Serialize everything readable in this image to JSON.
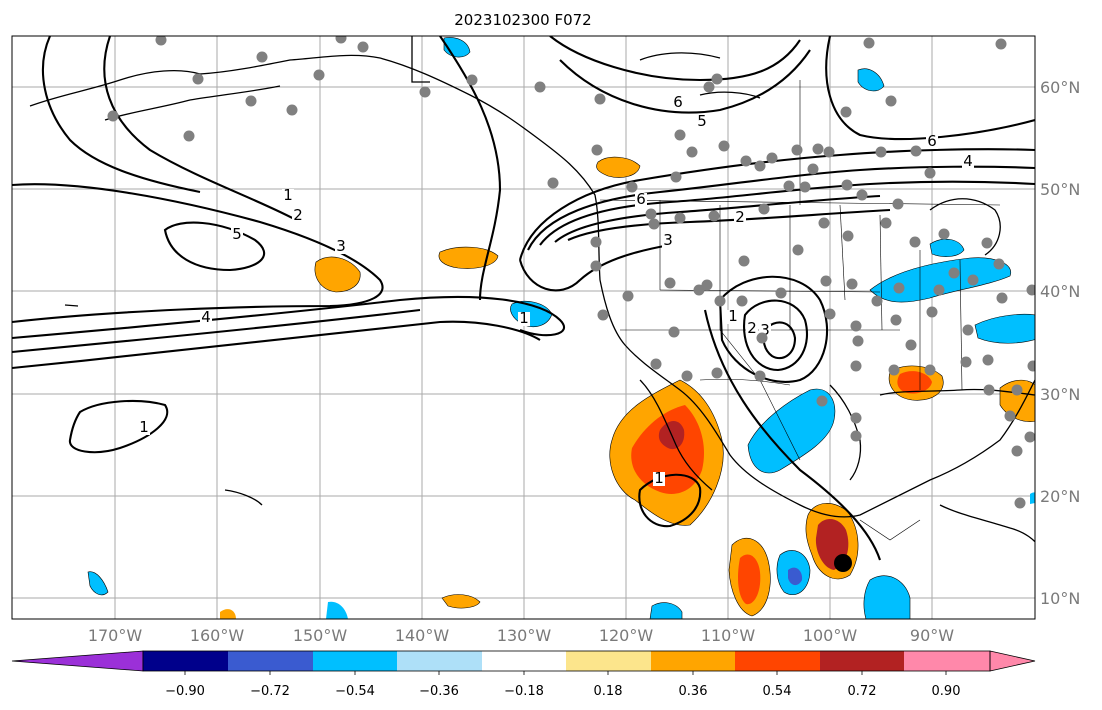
{
  "title": "2023102300 F072",
  "colors": {
    "grid": "#aaaaaa",
    "coast": "#000000",
    "contour": "#000000",
    "station": "#808080",
    "marker": "#000000"
  },
  "axes": {
    "lon_labels": [
      "170°W",
      "160°W",
      "150°W",
      "140°W",
      "130°W",
      "120°W",
      "110°W",
      "100°W",
      "90°W"
    ],
    "lat_labels": [
      "60°N",
      "50°N",
      "40°N",
      "30°N",
      "20°N",
      "10°N"
    ]
  },
  "colorbar": {
    "colors": [
      "#9b30d8",
      "#00008b",
      "#3a5bd0",
      "#00bfff",
      "#aee0f8",
      "#ffffff",
      "#fce58c",
      "#ffa500",
      "#ff4500",
      "#b22222",
      "#ff88aa"
    ],
    "labels": [
      "−0.90",
      "−0.72",
      "−0.54",
      "−0.36",
      "−0.18",
      "0.18",
      "0.36",
      "0.54",
      "0.72",
      "0.90"
    ]
  },
  "contour_labels": [
    "1",
    "2",
    "5",
    "3",
    "4",
    "1",
    "1",
    "6",
    "5",
    "6",
    "4",
    "6",
    "2",
    "3",
    "3",
    "2",
    "1",
    "1"
  ]
}
